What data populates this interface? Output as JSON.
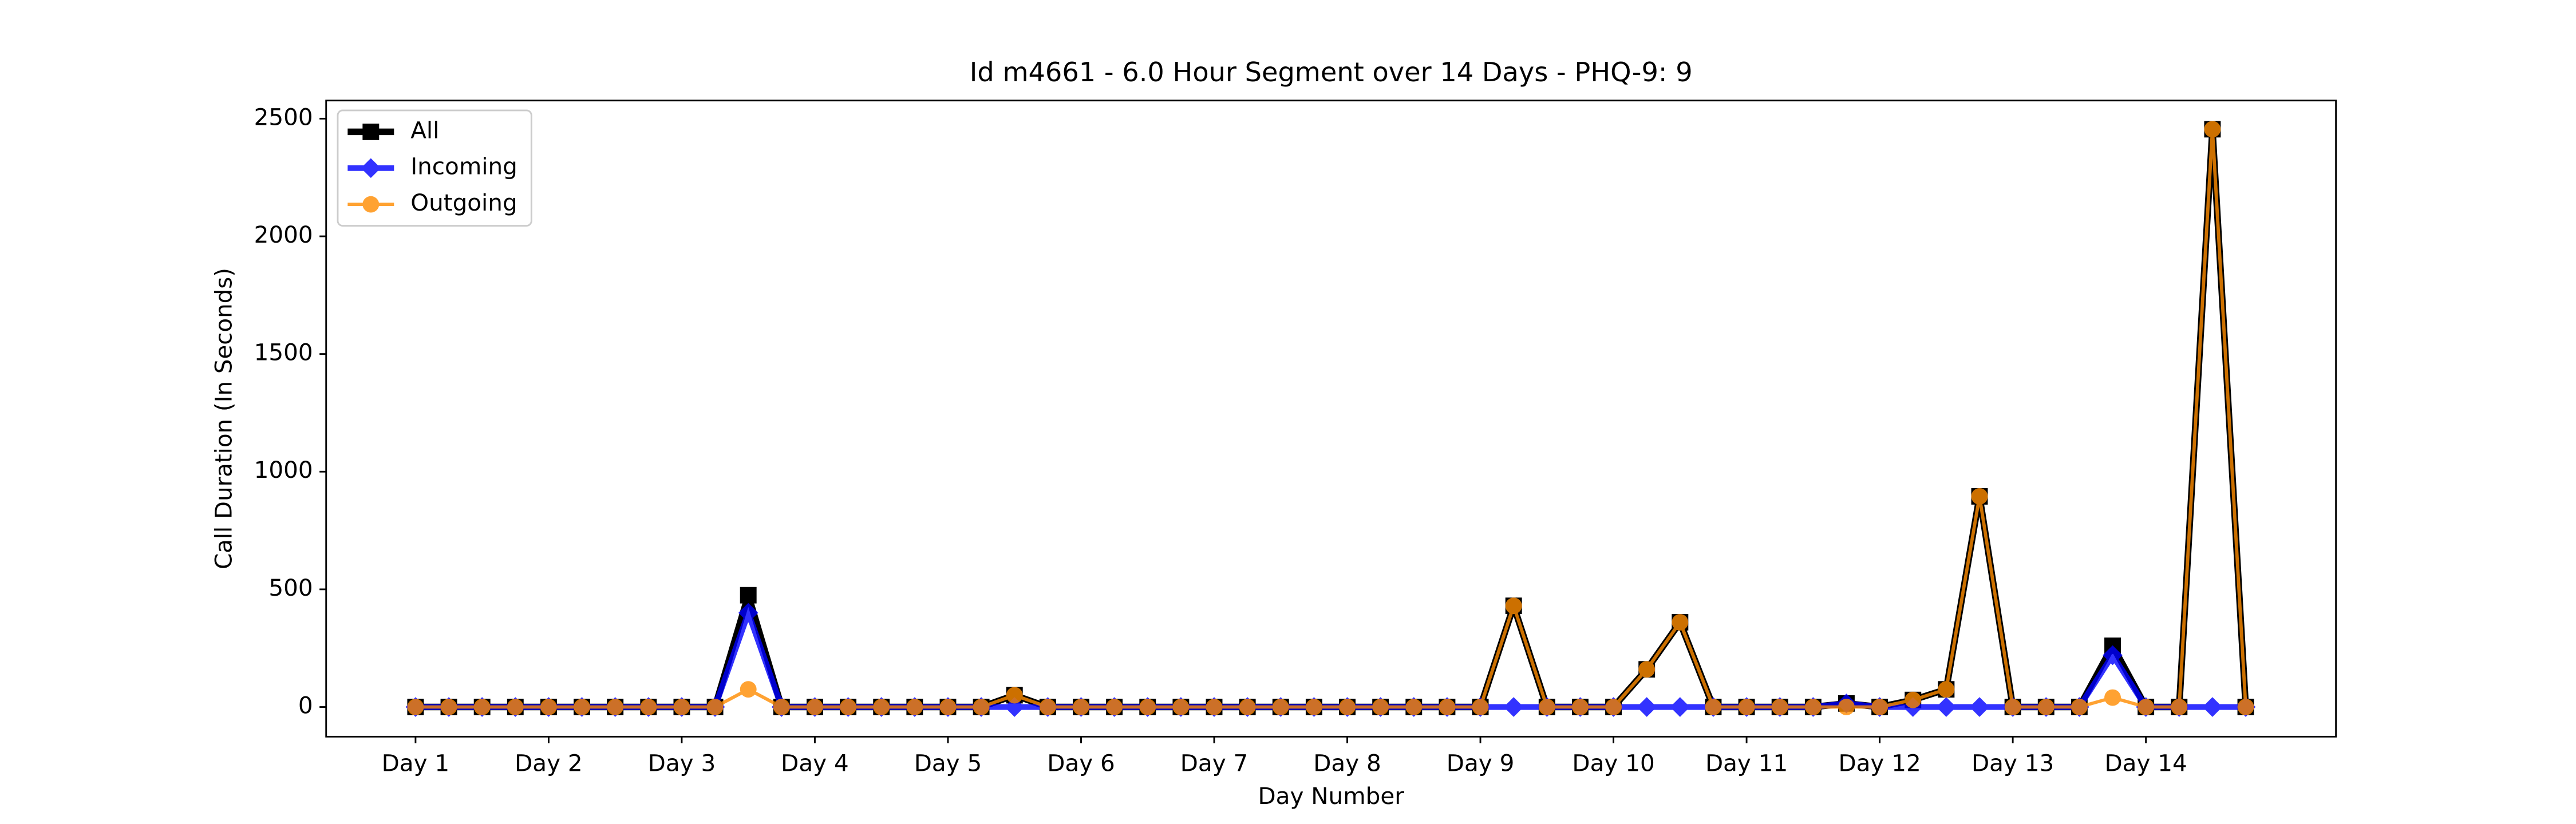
{
  "chart_data": {
    "type": "line",
    "title": "Id m4661 - 6.0 Hour Segment over 14 Days - PHQ-9: 9",
    "x_label": "Day Number",
    "y_label": "Call Duration (In Seconds)",
    "categories": [
      "Day 1",
      null,
      null,
      null,
      "Day 2",
      null,
      null,
      null,
      "Day 3",
      null,
      null,
      null,
      "Day 4",
      null,
      null,
      null,
      "Day 5",
      null,
      null,
      null,
      "Day 6",
      null,
      null,
      null,
      "Day 7",
      null,
      null,
      null,
      "Day 8",
      null,
      null,
      null,
      "Day 9",
      null,
      null,
      null,
      "Day 10",
      null,
      null,
      null,
      "Day 11",
      null,
      null,
      null,
      "Day 12",
      null,
      null,
      null,
      "Day 13",
      null,
      null,
      null,
      "Day 14",
      null,
      null,
      null
    ],
    "series": [
      {
        "name": "All",
        "color": "#000000",
        "marker": "square",
        "values": [
          0,
          0,
          0,
          0,
          0,
          0,
          0,
          0,
          0,
          0,
          475,
          0,
          0,
          0,
          0,
          0,
          0,
          0,
          50,
          0,
          0,
          0,
          0,
          0,
          0,
          0,
          0,
          0,
          0,
          0,
          0,
          0,
          0,
          430,
          0,
          0,
          0,
          160,
          360,
          0,
          0,
          0,
          0,
          15,
          0,
          30,
          75,
          895,
          0,
          0,
          0,
          260,
          0,
          0,
          2455,
          0
        ]
      },
      {
        "name": "Incoming",
        "color": "#0000ff",
        "marker": "diamond",
        "values": [
          0,
          0,
          0,
          0,
          0,
          0,
          0,
          0,
          0,
          0,
          400,
          0,
          0,
          0,
          0,
          0,
          0,
          0,
          0,
          0,
          0,
          0,
          0,
          0,
          0,
          0,
          0,
          0,
          0,
          0,
          0,
          0,
          0,
          0,
          0,
          0,
          0,
          0,
          0,
          0,
          0,
          0,
          0,
          15,
          0,
          0,
          0,
          0,
          0,
          0,
          0,
          220,
          0,
          0,
          0,
          0
        ]
      },
      {
        "name": "Outgoing",
        "color": "#ff8c00",
        "marker": "circle",
        "values": [
          0,
          0,
          0,
          0,
          0,
          0,
          0,
          0,
          0,
          0,
          75,
          0,
          0,
          0,
          0,
          0,
          0,
          0,
          50,
          0,
          0,
          0,
          0,
          0,
          0,
          0,
          0,
          0,
          0,
          0,
          0,
          0,
          0,
          430,
          0,
          0,
          0,
          160,
          360,
          0,
          0,
          0,
          0,
          0,
          0,
          30,
          75,
          895,
          0,
          0,
          0,
          40,
          0,
          0,
          2455,
          0
        ]
      }
    ],
    "ylim": [
      -126,
      2577
    ],
    "yticks": [
      0,
      500,
      1000,
      1500,
      2000,
      2500
    ],
    "legend": "upper left"
  }
}
